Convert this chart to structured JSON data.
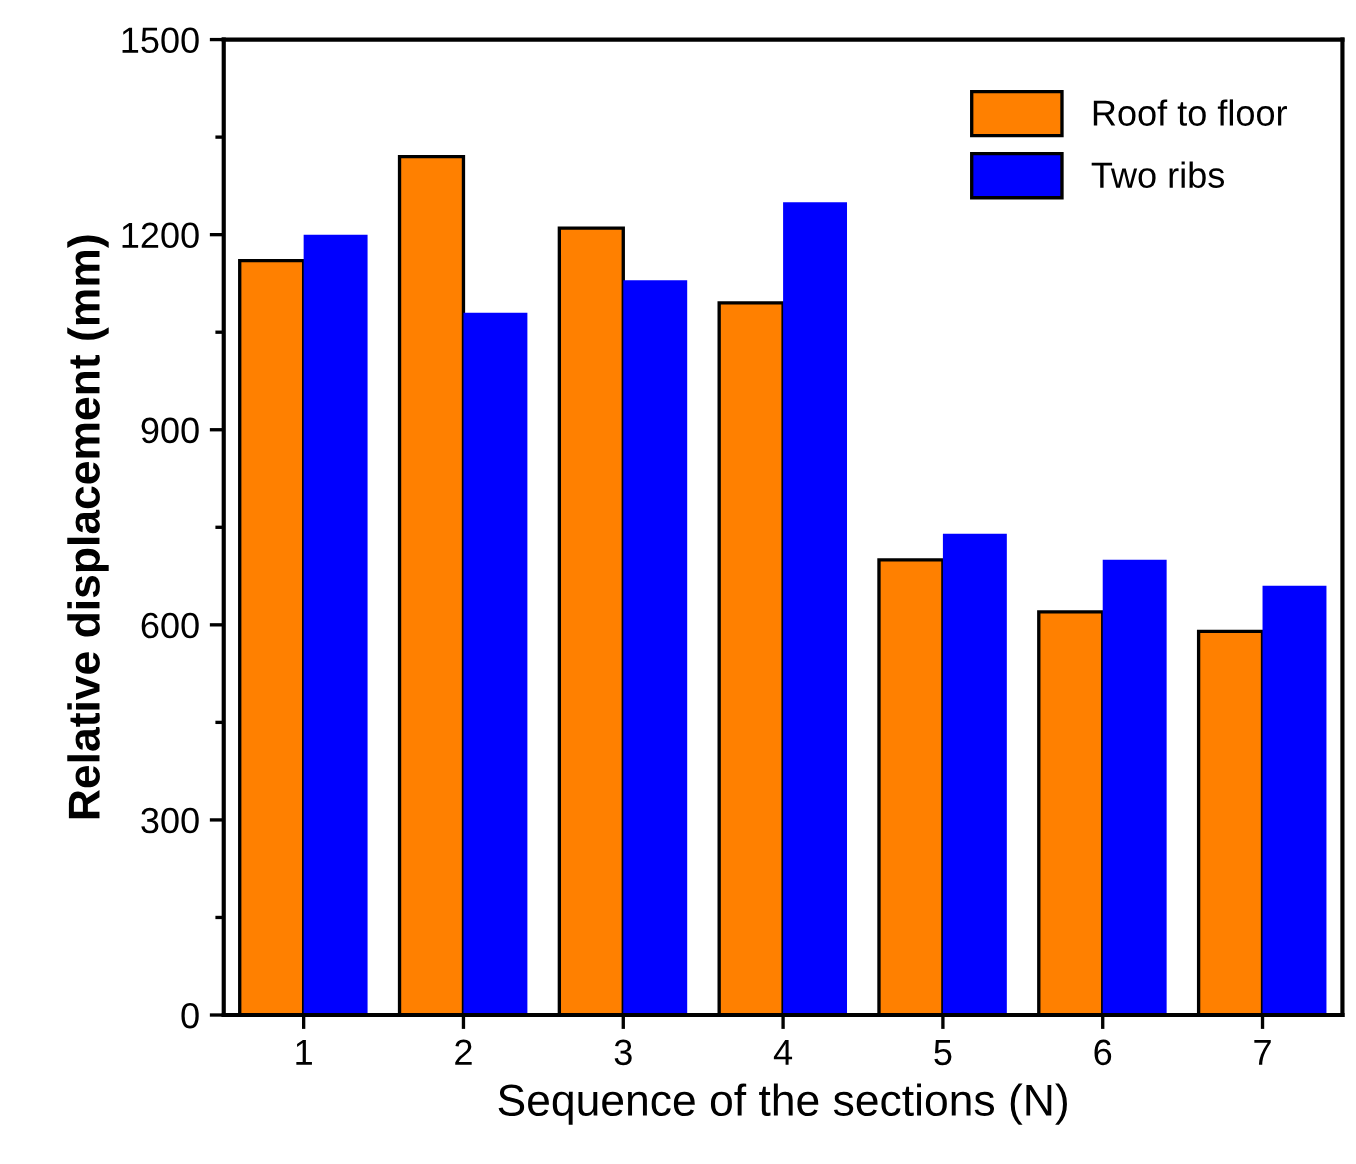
{
  "chart_data": {
    "type": "bar",
    "xlabel": "Sequence of the sections (N)",
    "ylabel": "Relative displacement (mm)",
    "categories": [
      "1",
      "2",
      "3",
      "4",
      "5",
      "6",
      "7"
    ],
    "series": [
      {
        "name": "Roof to floor",
        "color": "#ff8000",
        "values": [
          1160,
          1320,
          1210,
          1095,
          700,
          620,
          590
        ]
      },
      {
        "name": "Two ribs",
        "color": "#0000ff",
        "values": [
          1200,
          1080,
          1130,
          1250,
          740,
          700,
          660
        ]
      }
    ],
    "ylim": [
      0,
      1500
    ],
    "yticks": [
      0,
      300,
      600,
      900,
      1200,
      1500
    ],
    "grid": false,
    "legend": "top right"
  }
}
